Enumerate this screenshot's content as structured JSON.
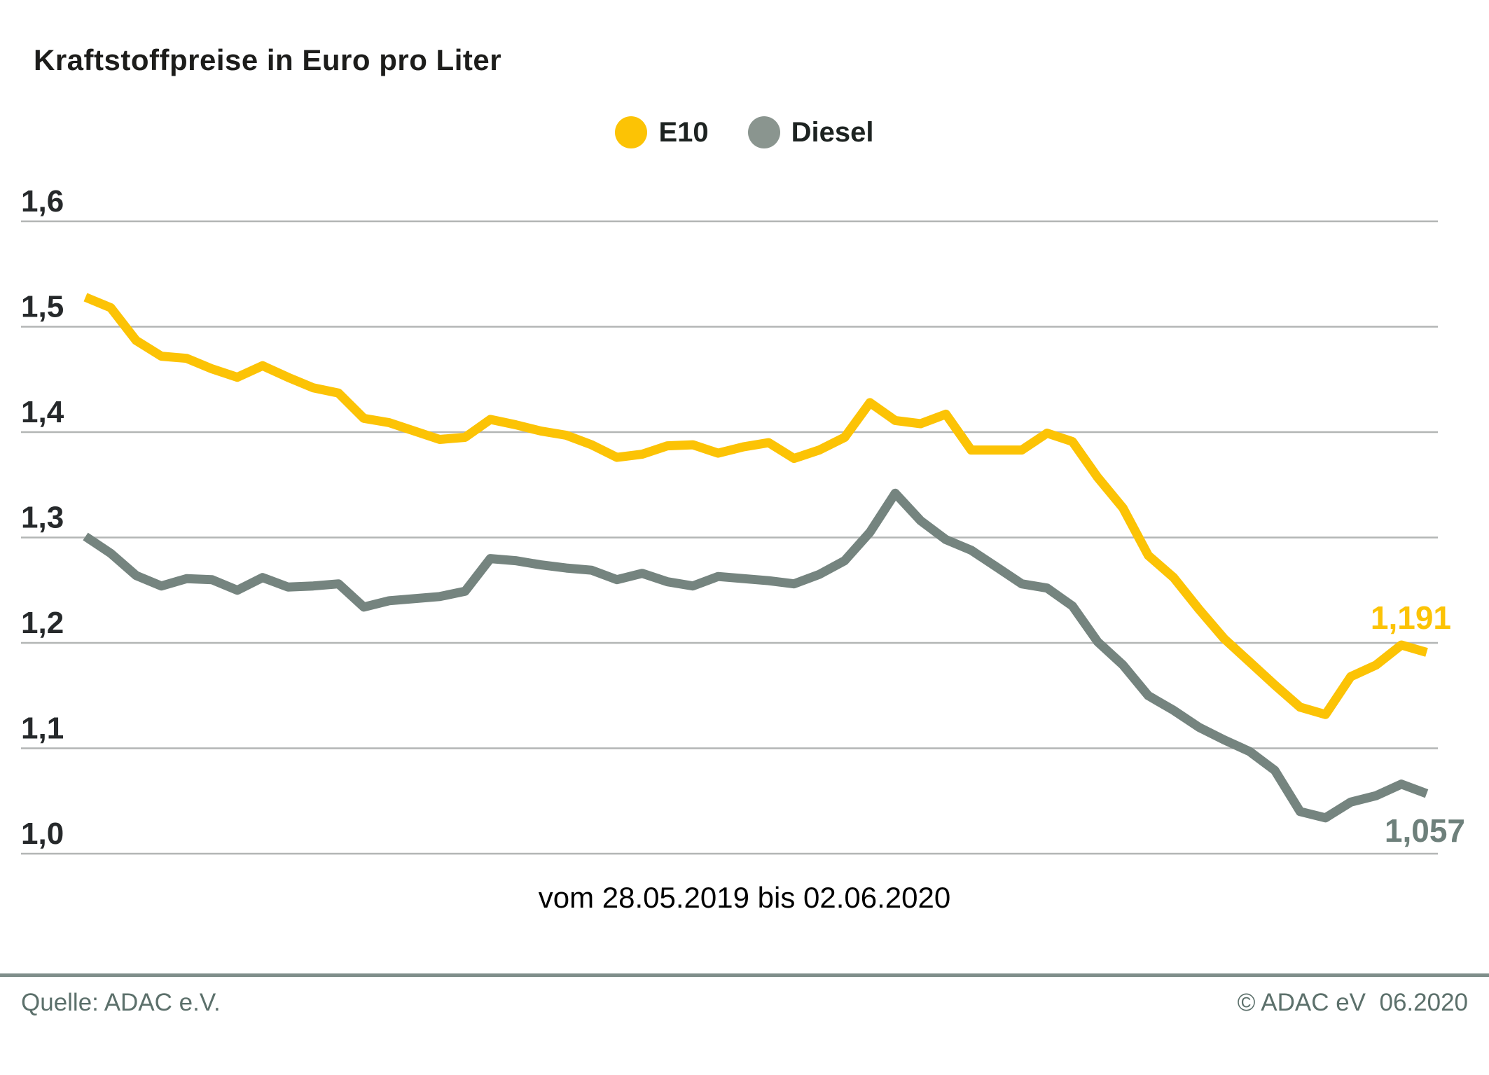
{
  "title": "Kraftstoffpreise in Euro pro Liter",
  "legend": [
    {
      "label": "E10",
      "color": "#fcc305"
    },
    {
      "label": "Diesel",
      "color": "#8a958f"
    }
  ],
  "chart_data": {
    "type": "line",
    "title": "Kraftstoffpreise in Euro pro Liter",
    "x_caption": "vom 28.05.2019 bis 02.06.2020",
    "x_start": "28.05.2019",
    "x_end": "02.06.2020",
    "n_points": 54,
    "ylabel": "Euro pro Liter",
    "ylim": [
      1.0,
      1.6
    ],
    "y_tick_step": 0.1,
    "y_tick_labels": [
      "1,6",
      "1,5",
      "1,4",
      "1,3",
      "1,2",
      "1,1",
      "1,0"
    ],
    "grid": true,
    "legend_position": "top-center",
    "series": [
      {
        "name": "E10",
        "color": "#fcc305",
        "end_label": "1,191",
        "end_value": 1.191,
        "values": [
          1.528,
          1.518,
          1.487,
          1.472,
          1.47,
          1.46,
          1.452,
          1.463,
          1.452,
          1.442,
          1.437,
          1.413,
          1.409,
          1.401,
          1.393,
          1.395,
          1.412,
          1.407,
          1.401,
          1.397,
          1.388,
          1.376,
          1.379,
          1.387,
          1.388,
          1.38,
          1.386,
          1.39,
          1.375,
          1.383,
          1.395,
          1.428,
          1.411,
          1.408,
          1.417,
          1.383,
          1.383,
          1.383,
          1.399,
          1.391,
          1.357,
          1.328,
          1.283,
          1.262,
          1.232,
          1.204,
          1.182,
          1.16,
          1.139,
          1.132,
          1.168,
          1.179,
          1.198,
          1.191
        ]
      },
      {
        "name": "Diesel",
        "color": "#75847f",
        "end_label": "1,057",
        "end_value": 1.057,
        "values": [
          1.301,
          1.285,
          1.264,
          1.254,
          1.261,
          1.26,
          1.25,
          1.262,
          1.253,
          1.254,
          1.256,
          1.234,
          1.24,
          1.242,
          1.244,
          1.249,
          1.28,
          1.278,
          1.274,
          1.271,
          1.269,
          1.26,
          1.266,
          1.258,
          1.254,
          1.263,
          1.261,
          1.259,
          1.256,
          1.265,
          1.278,
          1.305,
          1.342,
          1.316,
          1.298,
          1.288,
          1.272,
          1.256,
          1.252,
          1.235,
          1.201,
          1.179,
          1.15,
          1.136,
          1.12,
          1.108,
          1.097,
          1.079,
          1.04,
          1.034,
          1.049,
          1.055,
          1.066,
          1.057
        ]
      }
    ],
    "colors": {
      "gridline": "#b3b6b5",
      "tick_label": "#26292b",
      "e10_end_label": "#fcc305",
      "diesel_end_label": "#6e807b"
    }
  },
  "footer": {
    "source": "Quelle: ADAC e.V.",
    "copyright": "© ADAC eV  06.2020"
  }
}
